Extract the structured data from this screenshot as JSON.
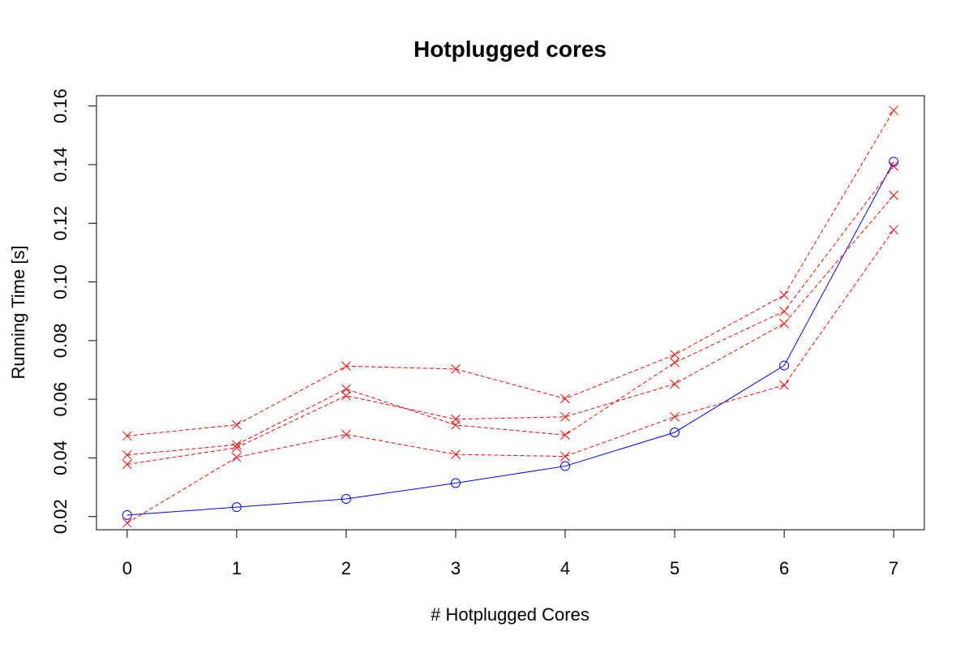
{
  "chart_data": {
    "type": "line",
    "title": "Hotplugged cores",
    "xlabel": "# Hotplugged Cores",
    "ylabel": "Running Time [s]",
    "x": [
      0,
      1,
      2,
      3,
      4,
      5,
      6,
      7
    ],
    "xticks": [
      "0",
      "1",
      "2",
      "3",
      "4",
      "5",
      "6",
      "7"
    ],
    "yticks": [
      "0.02",
      "0.04",
      "0.06",
      "0.08",
      "0.10",
      "0.12",
      "0.14",
      "0.16"
    ],
    "ylim": [
      0.0155,
      0.1635
    ],
    "xlim": [
      -0.28,
      7.28
    ],
    "grid": false,
    "series": [
      {
        "color": "#0000ff",
        "line": "solid",
        "marker": "circle",
        "values": [
          0.0205,
          0.0232,
          0.026,
          0.0314,
          0.0372,
          0.0487,
          0.0715,
          0.141
        ]
      },
      {
        "color": "#ff0000",
        "line": "dashed",
        "marker": "x",
        "values": [
          0.0475,
          0.0513,
          0.0713,
          0.0703,
          0.0602,
          0.0752,
          0.0955,
          0.1585
        ]
      },
      {
        "color": "#ff0000",
        "line": "dashed",
        "marker": "x",
        "values": [
          0.041,
          0.0445,
          0.0635,
          0.0512,
          0.0478,
          0.0725,
          0.09,
          0.1395
        ]
      },
      {
        "color": "#ff0000",
        "line": "dashed",
        "marker": "x",
        "values": [
          0.0378,
          0.0435,
          0.0612,
          0.0532,
          0.054,
          0.0652,
          0.0858,
          0.1295
        ]
      },
      {
        "color": "#ff0000",
        "line": "dashed",
        "marker": "x",
        "values": [
          0.0178,
          0.0402,
          0.048,
          0.0412,
          0.0405,
          0.054,
          0.0648,
          0.1178
        ]
      }
    ]
  }
}
